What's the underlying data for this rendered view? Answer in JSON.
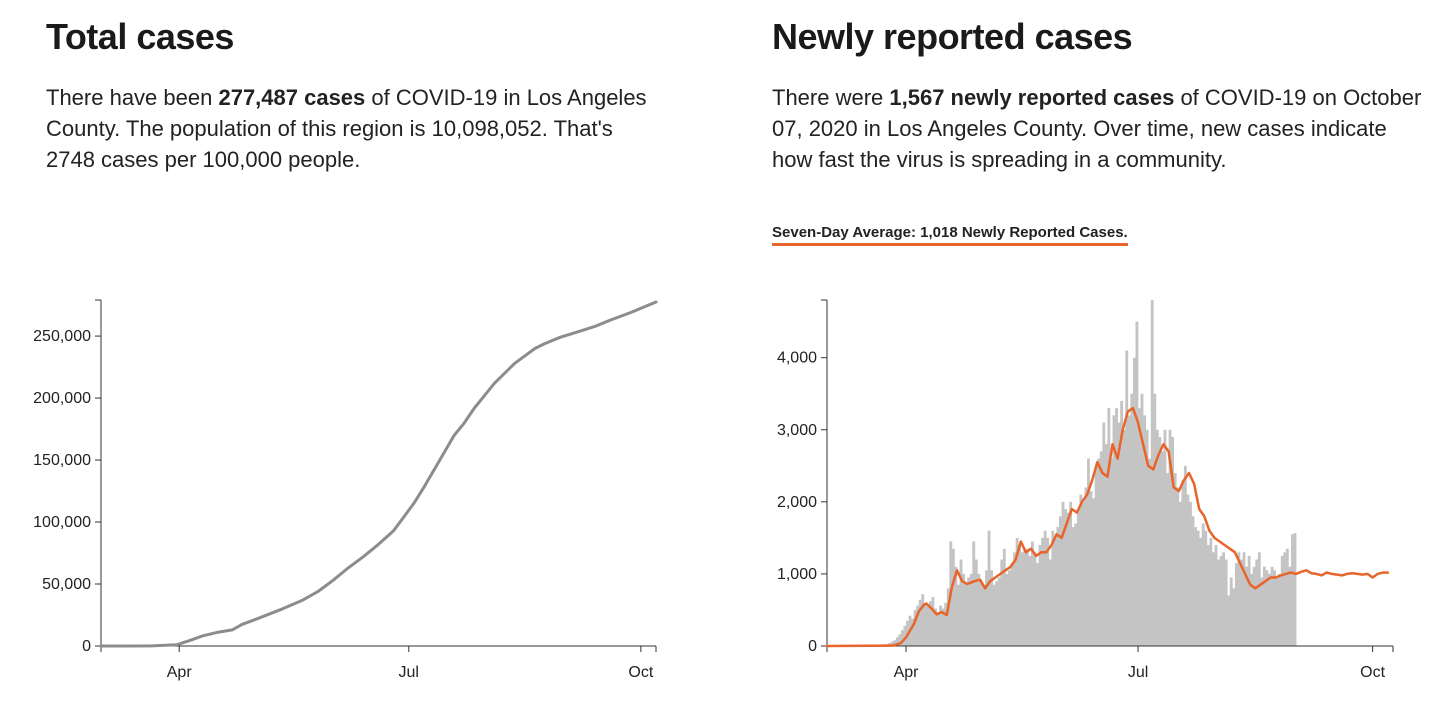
{
  "total": {
    "title": "Total cases",
    "desc_a": "There have been ",
    "desc_bold": "277,487 cases",
    "desc_b": " of COVID-19 in Los Angeles County. The population of this region is 10,098,052. That's 2748 cases per 100,000 people."
  },
  "new": {
    "title": "Newly reported cases",
    "desc_a": "There were ",
    "desc_bold": "1,567 newly reported cases",
    "desc_b": " of COVID-19 on October 07, 2020 in Los Angeles County. Over time, new cases indicate how fast the virus is spreading in a community.",
    "avg_label": "Seven-Day Average: 1,018 Newly Reported Cases."
  },
  "colors": {
    "line": "#8c8c8c",
    "bar": "#c4c4c4",
    "avg": "#e8642a",
    "axis": "#333333"
  },
  "chart_data": [
    {
      "type": "line",
      "title": "Total cases",
      "x_tick_labels": [
        "Apr",
        "Jul",
        "Oct"
      ],
      "x_tick_days": [
        31,
        122,
        214
      ],
      "x_domain": [
        0,
        220
      ],
      "ylim": [
        0,
        277487
      ],
      "y_ticks": [
        0,
        50000,
        100000,
        150000,
        200000,
        250000
      ],
      "y_tick_labels": [
        "0",
        "50,000",
        "100,000",
        "150,000",
        "200,000",
        "250,000"
      ],
      "series": [
        {
          "name": "Total cases",
          "day": [
            0,
            20,
            30,
            36,
            40,
            46,
            52,
            56,
            62,
            72,
            80,
            86,
            92,
            98,
            104,
            110,
            116,
            120,
            124,
            128,
            132,
            136,
            140,
            144,
            148,
            152,
            156,
            160,
            164,
            168,
            172,
            176,
            182,
            190,
            196,
            202,
            210,
            220
          ],
          "value": [
            0,
            100,
            1000,
            5000,
            8000,
            11000,
            13000,
            17500,
            22000,
            30000,
            37000,
            44000,
            53000,
            63000,
            72000,
            82000,
            93000,
            104000,
            115000,
            128000,
            142000,
            156000,
            170000,
            180000,
            192000,
            202000,
            212000,
            220000,
            228000,
            234000,
            240000,
            244000,
            249000,
            254000,
            258000,
            263000,
            269000,
            277487
          ]
        }
      ]
    },
    {
      "type": "bar",
      "title": "Newly reported cases",
      "x_tick_labels": [
        "Apr",
        "Jul",
        "Oct"
      ],
      "x_tick_days": [
        31,
        122,
        214
      ],
      "x_domain": [
        0,
        222
      ],
      "ylim": [
        0,
        4800
      ],
      "y_ticks": [
        0,
        1000,
        2000,
        3000,
        4000
      ],
      "y_tick_labels": [
        "0",
        "1,000",
        "2,000",
        "3,000",
        "4,000"
      ],
      "series": [
        {
          "name": "Newly reported cases",
          "start_day": 0,
          "values": [
            0,
            0,
            0,
            0,
            0,
            0,
            0,
            0,
            0,
            0,
            0,
            0,
            0,
            0,
            0,
            0,
            0,
            0,
            0,
            0,
            5,
            10,
            15,
            25,
            40,
            60,
            80,
            120,
            160,
            220,
            280,
            350,
            420,
            380,
            500,
            560,
            640,
            720,
            600,
            550,
            620,
            680,
            520,
            470,
            560,
            520,
            600,
            800,
            1450,
            1350,
            1100,
            850,
            1200,
            1000,
            880,
            950,
            1000,
            1450,
            1200,
            1000,
            900,
            850,
            1050,
            1600,
            1050,
            850,
            900,
            950,
            1200,
            1350,
            1000,
            1050,
            1150,
            1300,
            1500,
            1400,
            1300,
            1350,
            1350,
            1250,
            1450,
            1300,
            1150,
            1400,
            1500,
            1600,
            1500,
            1200,
            1600,
            1500,
            1650,
            1800,
            2000,
            1900,
            1850,
            2000,
            1650,
            1700,
            1900,
            2100,
            2000,
            2200,
            2600,
            2150,
            2050,
            2500,
            2600,
            2700,
            3100,
            2800,
            3300,
            2600,
            3200,
            3300,
            3100,
            3400,
            3000,
            4100,
            3200,
            3500,
            4000,
            4500,
            3300,
            3500,
            3200,
            3000,
            2600,
            4800,
            3500,
            3000,
            2900,
            2700,
            3000,
            2400,
            3000,
            2900,
            2400,
            2200,
            2000,
            2300,
            2500,
            2100,
            2000,
            1800,
            1650,
            1600,
            1500,
            1700,
            1600,
            1400,
            1500,
            1300,
            1400,
            1200,
            1250,
            1300,
            1200,
            700,
            950,
            800,
            1150,
            1300,
            1200,
            1300,
            1100,
            1250,
            1000,
            1100,
            1200,
            1300,
            950,
            1100,
            1050,
            1000,
            1100,
            1050,
            950,
            1000,
            1250,
            1300,
            1350,
            1100,
            1550,
            1567
          ]
        },
        {
          "name": "Seven-Day Average",
          "type": "line",
          "day": [
            0,
            26,
            29,
            31,
            34,
            36,
            38,
            39,
            41,
            43,
            45,
            47,
            49,
            51,
            53,
            55,
            58,
            60,
            62,
            64,
            66,
            68,
            70,
            72,
            74,
            76,
            78,
            80,
            82,
            84,
            86,
            88,
            90,
            92,
            94,
            96,
            98,
            100,
            102,
            104,
            106,
            108,
            110,
            112,
            114,
            116,
            118,
            120,
            122,
            124,
            126,
            128,
            130,
            132,
            134,
            136,
            138,
            140,
            142,
            144,
            146,
            148,
            150,
            152,
            154,
            156,
            158,
            160,
            162,
            164,
            166,
            168,
            170,
            172,
            174,
            176,
            178,
            180,
            182,
            184,
            186,
            188,
            190,
            192,
            194,
            196,
            198,
            200,
            202,
            204,
            206,
            208,
            210,
            212,
            214,
            216,
            218,
            220
          ],
          "value": [
            0,
            5,
            40,
            120,
            300,
            480,
            570,
            590,
            520,
            440,
            470,
            430,
            820,
            1050,
            900,
            860,
            900,
            920,
            800,
            900,
            950,
            1000,
            1050,
            1100,
            1200,
            1450,
            1300,
            1350,
            1250,
            1300,
            1300,
            1400,
            1550,
            1500,
            1700,
            1900,
            1850,
            2000,
            2100,
            2300,
            2550,
            2400,
            2350,
            2800,
            2600,
            3000,
            3250,
            3300,
            3100,
            2800,
            2500,
            2450,
            2650,
            2800,
            2700,
            2200,
            2150,
            2300,
            2400,
            2250,
            1900,
            1800,
            1600,
            1500,
            1450,
            1400,
            1350,
            1300,
            1150,
            1000,
            850,
            800,
            850,
            900,
            950,
            950,
            980,
            1000,
            1020,
            1000,
            1030,
            1050,
            1010,
            1000,
            980,
            1020,
            1000,
            990,
            980,
            1000,
            1010,
            1000,
            990,
            1000,
            950,
            1000,
            1018,
            1018
          ]
        }
      ]
    }
  ]
}
